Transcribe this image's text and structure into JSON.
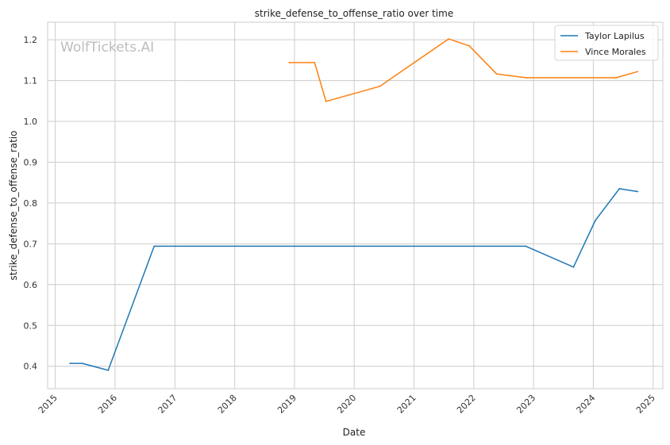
{
  "watermark": "WolfTickets.AI",
  "chart_data": {
    "type": "line",
    "title": "strike_defense_to_offense_ratio over time",
    "xlabel": "Date",
    "ylabel": "strike_defense_to_offense_ratio",
    "x_ticks": [
      "2015",
      "2016",
      "2017",
      "2018",
      "2019",
      "2020",
      "2021",
      "2022",
      "2023",
      "2024",
      "2025"
    ],
    "y_ticks": [
      "0.4",
      "0.5",
      "0.6",
      "0.7",
      "0.8",
      "0.9",
      "1.0",
      "1.1",
      "1.2"
    ],
    "xlim": [
      "2014-11-15",
      "2025-03-01"
    ],
    "ylim": [
      0.345,
      1.243
    ],
    "grid": true,
    "legend_position": "top-right",
    "series": [
      {
        "name": "Taylor Lapilus",
        "color": "#1f77b4",
        "points": [
          [
            "2015-04-01",
            0.407
          ],
          [
            "2015-06-15",
            0.407
          ],
          [
            "2015-11-20",
            0.39
          ],
          [
            "2016-08-27",
            0.694
          ],
          [
            "2022-11-15",
            0.694
          ],
          [
            "2023-09-02",
            0.643
          ],
          [
            "2024-01-13",
            0.757
          ],
          [
            "2024-06-08",
            0.835
          ],
          [
            "2024-09-28",
            0.828
          ]
        ]
      },
      {
        "name": "Vince Morales",
        "color": "#ff7f0e",
        "points": [
          [
            "2018-11-30",
            1.144
          ],
          [
            "2019-05-04",
            1.144
          ],
          [
            "2019-07-13",
            1.049
          ],
          [
            "2020-06-06",
            1.086
          ],
          [
            "2021-07-31",
            1.202
          ],
          [
            "2021-12-04",
            1.185
          ],
          [
            "2022-05-21",
            1.116
          ],
          [
            "2022-11-19",
            1.107
          ],
          [
            "2024-05-18",
            1.107
          ],
          [
            "2024-09-28",
            1.122
          ]
        ]
      }
    ]
  }
}
